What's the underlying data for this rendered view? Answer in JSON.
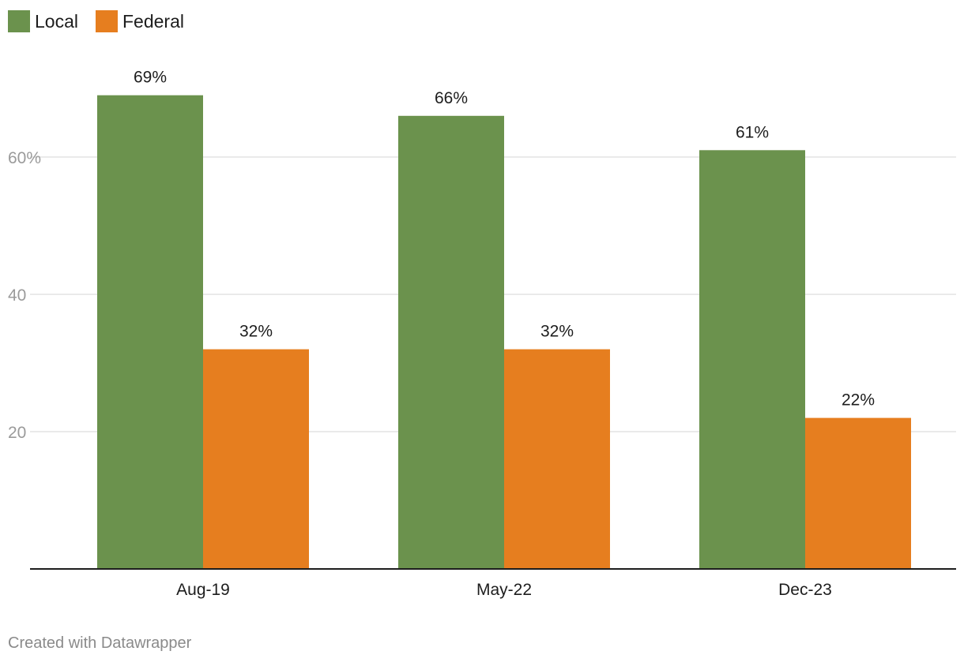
{
  "legend": [
    {
      "label": "Local",
      "color": "#6b924d"
    },
    {
      "label": "Federal",
      "color": "#e67e1f"
    }
  ],
  "chart_data": {
    "type": "bar",
    "categories": [
      "Aug-19",
      "May-22",
      "Dec-23"
    ],
    "series": [
      {
        "name": "Local",
        "values": [
          69,
          66,
          61
        ],
        "labels": [
          "69%",
          "66%",
          "61%"
        ],
        "color": "#6b924d"
      },
      {
        "name": "Federal",
        "values": [
          32,
          32,
          22
        ],
        "labels": [
          "32%",
          "32%",
          "22%"
        ],
        "color": "#e67e1f"
      }
    ],
    "ylim": [
      0,
      80
    ],
    "yticks": [
      20,
      40,
      60
    ],
    "ytick_labels": [
      "20",
      "40",
      "60%"
    ],
    "grid": true,
    "legend_position": "top-left"
  },
  "footer": {
    "credit": "Created with Datawrapper"
  }
}
